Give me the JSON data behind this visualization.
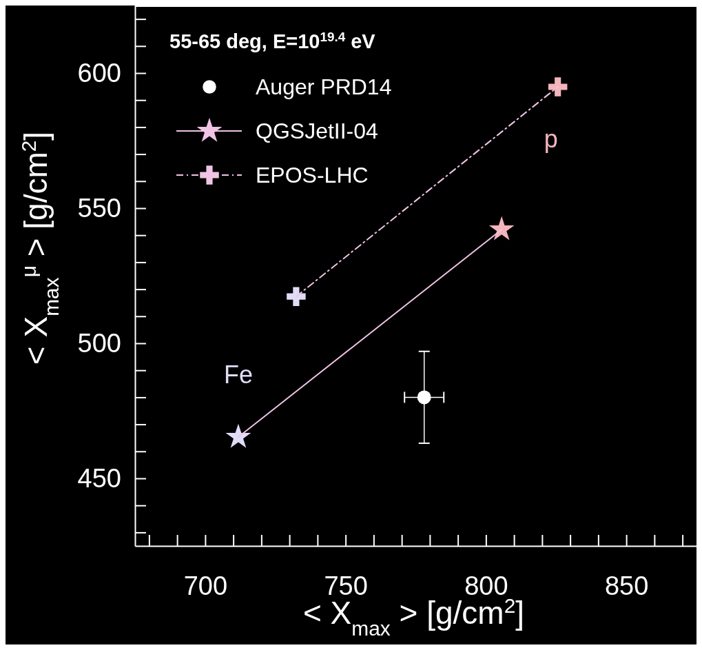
{
  "chart_data": {
    "type": "line",
    "xlabel": "< X$_{max}$ > [g/cm$^{2}$]",
    "ylabel": "< X$_{max}$$^{μ}$ > [g/cm$^{2}$]",
    "legend_title": "55-65 deg, E=10$^{19.4}$ eV",
    "legend": "top left",
    "xlim": [
      675,
      875
    ],
    "ylim": [
      425,
      625
    ],
    "xticks": [
      {
        "value": 680,
        "label": null
      },
      {
        "value": 690,
        "label": null
      },
      700,
      {
        "value": 710,
        "label": null
      },
      {
        "value": 720,
        "label": null
      },
      {
        "value": 730,
        "label": null
      },
      {
        "value": 740,
        "label": null
      },
      750,
      {
        "value": 760,
        "label": null
      },
      {
        "value": 770,
        "label": null
      },
      {
        "value": 780,
        "label": null
      },
      {
        "value": 790,
        "label": null
      },
      800,
      {
        "value": 810,
        "label": null
      },
      {
        "value": 820,
        "label": null
      },
      {
        "value": 830,
        "label": null
      },
      {
        "value": 840,
        "label": null
      },
      850,
      {
        "value": 860,
        "label": null
      },
      {
        "value": 870,
        "label": null
      }
    ],
    "yticks": [
      {
        "value": 430,
        "label": null
      },
      {
        "value": 440,
        "label": null
      },
      450,
      {
        "value": 460,
        "label": null
      },
      {
        "value": 470,
        "label": null
      },
      {
        "value": 480,
        "label": null
      },
      {
        "value": 490,
        "label": null
      },
      500,
      {
        "value": 510,
        "label": null
      },
      {
        "value": 520,
        "label": null
      },
      {
        "value": 530,
        "label": null
      },
      {
        "value": 540,
        "label": null
      },
      550,
      {
        "value": 560,
        "label": null
      },
      {
        "value": 570,
        "label": null
      },
      {
        "value": 580,
        "label": null
      },
      {
        "value": 590,
        "label": null
      },
      600,
      {
        "value": 610,
        "label": null
      },
      {
        "value": 620,
        "label": null
      }
    ],
    "series": [
      {
        "name": "Auger PRD14",
        "type": "scatter",
        "marker": "circle",
        "color": "#ffffff",
        "x": [
          778
        ],
        "values": [
          480
        ],
        "errors": [
          17
        ],
        "xerrors": [
          7
        ]
      },
      {
        "name": "QGSJetII-04",
        "type": "line",
        "marker": "star",
        "line_style": "solid",
        "color": "#f0c4e4",
        "colors": [
          "#e0dcf8",
          "#f4b4bc"
        ],
        "x": [
          711.8,
          805.6
        ],
        "values": [
          465.3,
          542.1
        ]
      },
      {
        "name": "EPOS-LHC",
        "type": "line",
        "marker": "cross",
        "line_style": "dashed",
        "color": "#f0c4e4",
        "colors": [
          "#e0dcf8",
          "#f4b4bc"
        ],
        "x": [
          732.4,
          825.6
        ],
        "values": [
          517.3,
          594.9
        ]
      }
    ],
    "annotations": [
      {
        "text": "Fe",
        "x": 711.8,
        "y": 465.3
      },
      {
        "text": "p",
        "x": 825.6,
        "y": 594.9
      }
    ]
  }
}
